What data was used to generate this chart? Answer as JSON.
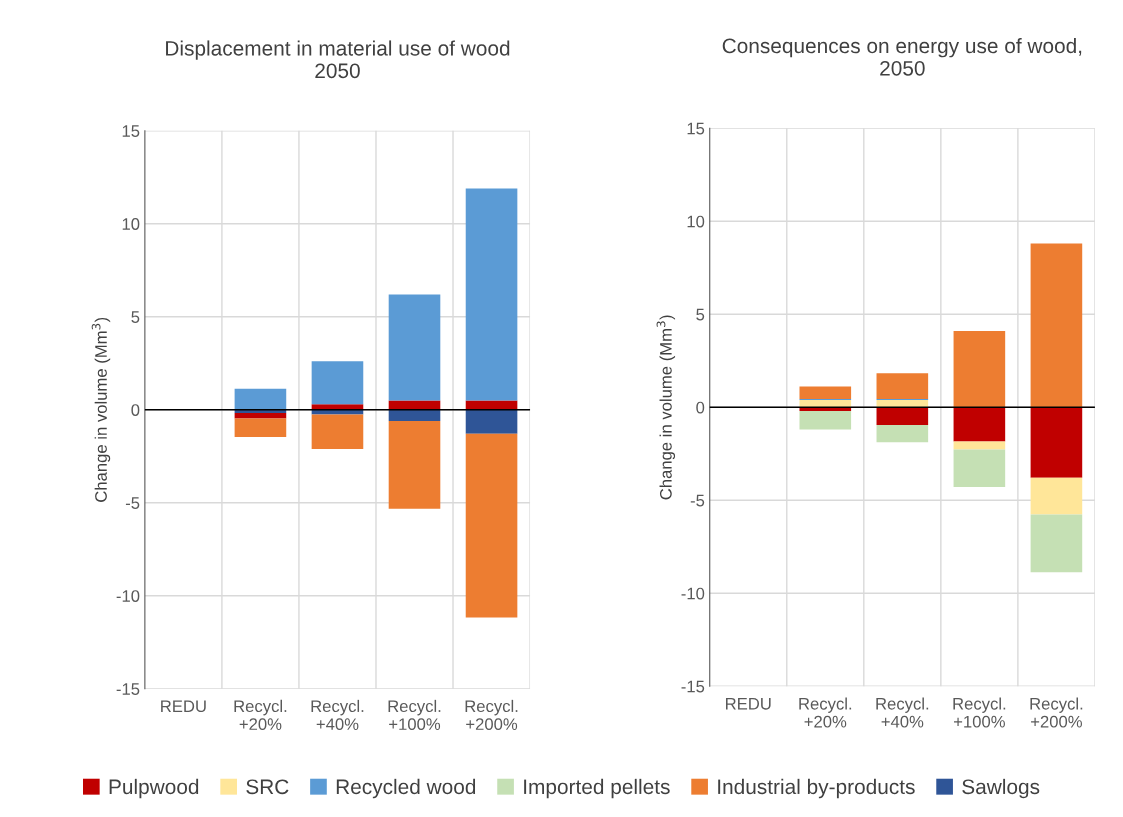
{
  "chart_data": [
    {
      "type": "bar",
      "title": "Displacement in material use of wood\n2050",
      "ylabel": "Change in volume (Mm$^{3}$)",
      "categories": [
        "REDU",
        "Recycl.\n+20%",
        "Recycl.\n+40%",
        "Recycl.\n+100%",
        "Recycl.\n+200%"
      ],
      "stacked": true,
      "ylim": [
        -15,
        15
      ],
      "yticks": [
        -15,
        -10,
        -5,
        0,
        5,
        10,
        15
      ],
      "grid": true,
      "legend": "bottom",
      "series": [
        {
          "name": "Sawlogs",
          "color": "#2f5597",
          "values": [
            null,
            -0.18,
            -0.25,
            -0.61,
            -1.29
          ]
        },
        {
          "name": "Pulpwood",
          "color": "#c00000",
          "values": [
            null,
            -0.29,
            0.29,
            0.5,
            0.5
          ]
        },
        {
          "name": "Industrial by-products",
          "color": "#ed7d31",
          "values": [
            null,
            -1.0,
            -1.86,
            -4.72,
            -9.88
          ]
        },
        {
          "name": "Recycled wood",
          "color": "#5b9bd5",
          "values": [
            null,
            1.13,
            2.32,
            5.7,
            11.4
          ]
        }
      ]
    },
    {
      "type": "bar",
      "title": "Consequences on energy use of wood,\n2050",
      "ylabel": "Change in volume (Mm$^{3}$)",
      "categories": [
        "REDU",
        "Recycl.\n+20%",
        "Recycl.\n+40%",
        "Recycl.\n+100%",
        "Recycl.\n+200%"
      ],
      "stacked": true,
      "ylim": [
        -15,
        15
      ],
      "yticks": [
        -15,
        -10,
        -5,
        0,
        5,
        10,
        15
      ],
      "grid": true,
      "legend": "bottom",
      "series": [
        {
          "name": "Pulpwood",
          "color": "#c00000",
          "values": [
            null,
            -0.2,
            -0.95,
            -1.84,
            -3.79
          ]
        },
        {
          "name": "SRC",
          "color": "#ffe699",
          "values": [
            null,
            0.39,
            0.39,
            -0.43,
            -1.98
          ]
        },
        {
          "name": "Recycled wood",
          "color": "#5b9bd5",
          "values": [
            null,
            0.05,
            0.05,
            null,
            null
          ]
        },
        {
          "name": "Imported pellets",
          "color": "#c5e0b4",
          "values": [
            null,
            -1.0,
            -0.93,
            -2.02,
            -3.1
          ]
        },
        {
          "name": "Industrial by-products",
          "color": "#ed7d31",
          "values": [
            null,
            0.68,
            1.39,
            4.1,
            8.8
          ]
        },
        {
          "name": "Sawlogs",
          "color": "#2f5597",
          "values": [
            null,
            null,
            null,
            null,
            null
          ]
        }
      ]
    }
  ]
}
